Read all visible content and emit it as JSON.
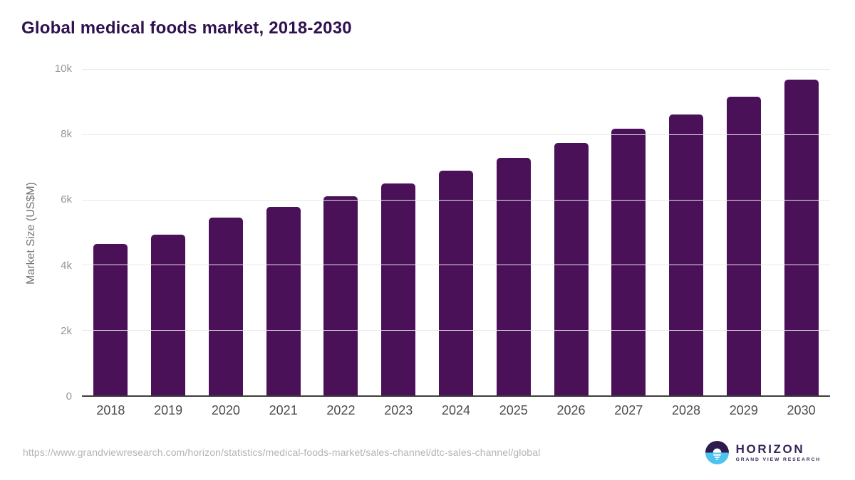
{
  "header": {
    "title": "Global medical foods market, 2018-2030"
  },
  "chart_data": {
    "type": "bar",
    "title": "Global medical foods market, 2018-2030",
    "xlabel": "",
    "ylabel": "Market Size (US$M)",
    "ylim": [
      0,
      10000
    ],
    "grid": true,
    "legend": "none",
    "bar_color": "#4a1158",
    "categories": [
      "2018",
      "2019",
      "2020",
      "2021",
      "2022",
      "2023",
      "2024",
      "2025",
      "2026",
      "2027",
      "2028",
      "2029",
      "2030"
    ],
    "values": [
      4640,
      4920,
      5450,
      5770,
      6110,
      6500,
      6890,
      7280,
      7730,
      8170,
      8610,
      9150,
      9680
    ],
    "yticks": [
      {
        "label": "10k",
        "value": 10000
      },
      {
        "label": "8k",
        "value": 8000
      },
      {
        "label": "6k",
        "value": 6000
      },
      {
        "label": "4k",
        "value": 4000
      },
      {
        "label": "2k",
        "value": 2000
      },
      {
        "label": "0",
        "value": 0
      }
    ]
  },
  "footer": {
    "source_url": "https://www.grandviewresearch.com/horizon/statistics/medical-foods-market/sales-channel/dtc-sales-channel/global",
    "logo": {
      "name": "HORIZON",
      "subtitle": "GRAND VIEW RESEARCH"
    }
  },
  "colors": {
    "bar": "#4a1158",
    "title_text": "#2f1050",
    "logo_purple": "#2d1b4e",
    "logo_blue": "#4ec3f0",
    "grid": "#e8e8e8",
    "axis_line": "#3d3d3d"
  }
}
